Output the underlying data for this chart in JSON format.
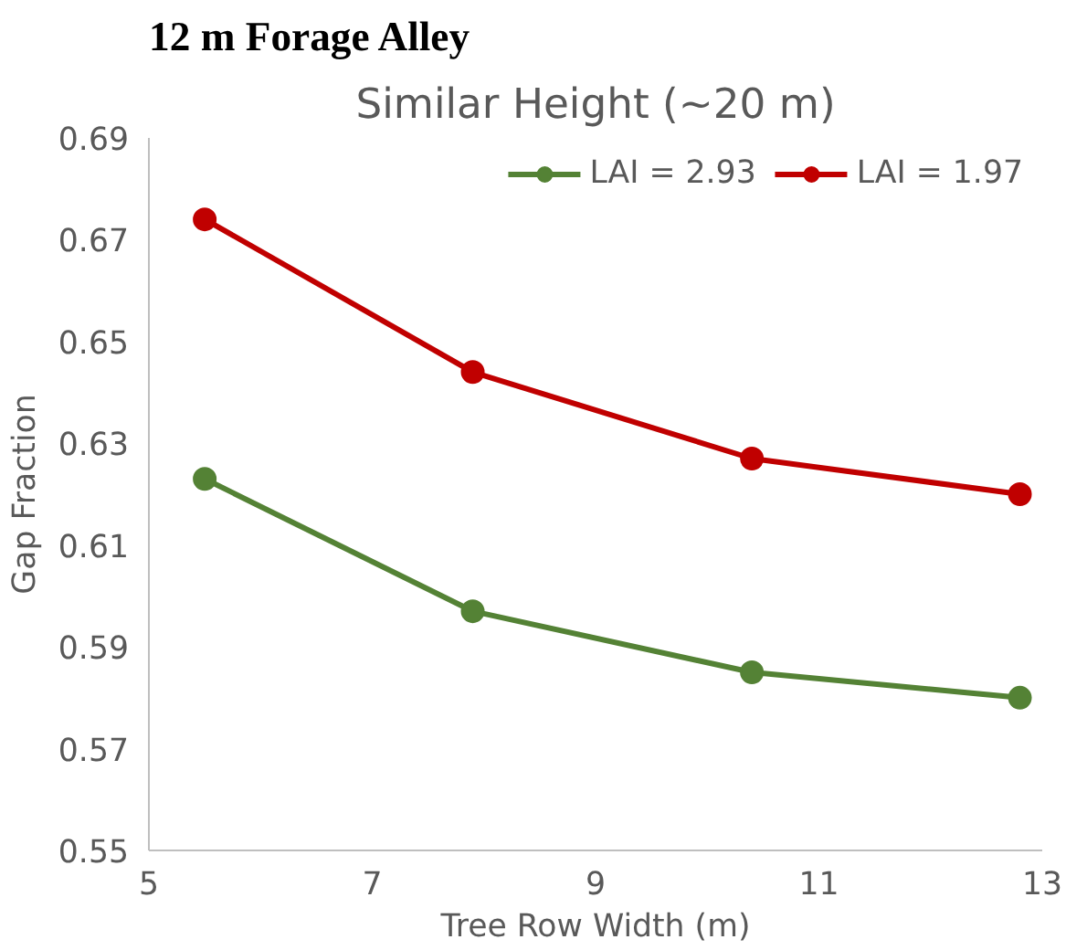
{
  "chart_data": {
    "type": "line",
    "title": "12 m Forage Alley",
    "subtitle": "Similar Height (~20 m)",
    "xlabel": "Tree Row Width (m)",
    "ylabel": "Gap Fraction",
    "x": [
      5.5,
      7.9,
      10.4,
      12.8
    ],
    "series": [
      {
        "name": "LAI = 2.93",
        "color": "#548235",
        "values": [
          0.623,
          0.597,
          0.585,
          0.58
        ]
      },
      {
        "name": "LAI = 1.97",
        "color": "#c00000",
        "values": [
          0.674,
          0.644,
          0.627,
          0.62
        ]
      }
    ],
    "xlim": [
      5,
      13
    ],
    "xticks": [
      5,
      7,
      9,
      11,
      13
    ],
    "ylim": [
      0.55,
      0.69
    ],
    "yticks": [
      0.55,
      0.57,
      0.59,
      0.61,
      0.63,
      0.65,
      0.67,
      0.69
    ],
    "grid": false,
    "legend": "top right",
    "marker": "circle",
    "line_style": "solid"
  }
}
